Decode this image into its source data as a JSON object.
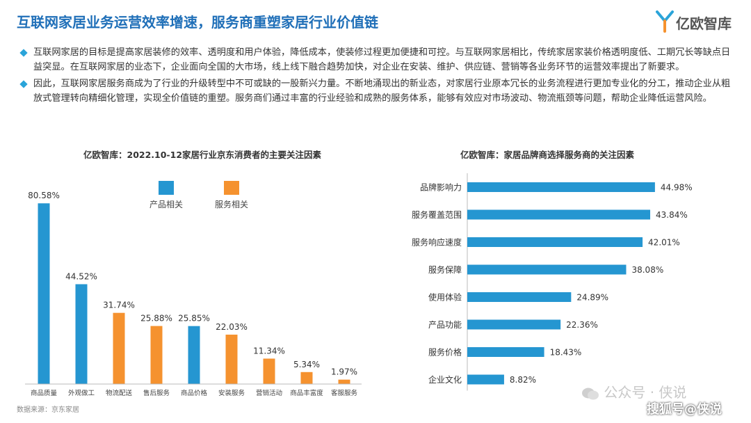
{
  "header": {
    "title": "互联网家居业务运营效率增速，服务商重塑家居行业价值链",
    "logo_text": "亿欧智库"
  },
  "bullets": [
    "互联网家居的目标是提高家居装修的效率、透明度和用户体验，降低成本，使装修过程更加便捷和可控。与互联网家居相比，传统家居家装价格透明度低、工期冗长等缺点日益突显。在互联网家居的业态下，企业面向全国的大市场，线上线下融合趋势加快，对企业在安装、维护、供应链、营销等各业务环节的运营效率提出了新要求。",
    "因此，互联网家居服务商成为了行业的升级转型中不可或缺的一股新兴力量。不断地涌现出的新业态，对家居行业原本冗长的业务流程进行更加专业化的分工，推动企业从粗放式管理转向精细化管理，实现全价值链的重塑。服务商们通过丰富的行业经验和成熟的服务体系，能够有效应对市场波动、物流瓶颈等问题，帮助企业降低运营风险。"
  ],
  "source": "数据来源：京东家居",
  "watermark": "公众号 · 侠说",
  "watermark2": "搜狐号@侠说",
  "colors": {
    "blue": "#2596d1",
    "orange": "#f5922f",
    "title_blue": "#1f6fb8"
  },
  "chart_data": [
    {
      "type": "bar",
      "title": "亿欧智库：2022.10-12家居行业京东消费者的主要关注因素",
      "categories": [
        "商品质量",
        "外观做工",
        "物流配送",
        "售后服务",
        "商品价格",
        "安装服务",
        "营销活动",
        "商品丰富度",
        "客服服务"
      ],
      "values": [
        80.58,
        44.52,
        31.74,
        25.88,
        25.85,
        22.03,
        11.34,
        5.34,
        1.97
      ],
      "labels": [
        "80.58%",
        "44.52%",
        "31.74%",
        "25.88%",
        "25.85%",
        "22.03%",
        "11.34%",
        "5.34%",
        "1.97%"
      ],
      "groups": [
        "产品相关",
        "产品相关",
        "服务相关",
        "服务相关",
        "产品相关",
        "服务相关",
        "服务相关",
        "服务相关",
        "服务相关"
      ],
      "legend": [
        "产品相关",
        "服务相关"
      ],
      "legend_position": "top",
      "ylim": [
        0,
        85
      ],
      "grid": false
    },
    {
      "type": "bar",
      "orientation": "horizontal",
      "title": "亿欧智库：家居品牌商选择服务商的关注因素",
      "categories": [
        "品牌影响力",
        "服务覆盖范围",
        "服务响应速度",
        "服务保障",
        "使用体验",
        "产品功能",
        "服务价格",
        "企业文化"
      ],
      "values": [
        44.98,
        43.84,
        42.01,
        38.08,
        24.89,
        22.36,
        18.43,
        8.82
      ],
      "labels": [
        "44.98%",
        "43.84%",
        "42.01%",
        "38.08%",
        "24.89%",
        "22.36%",
        "18.43%",
        "8.82%"
      ],
      "xlim": [
        0,
        50
      ],
      "grid": false
    }
  ]
}
